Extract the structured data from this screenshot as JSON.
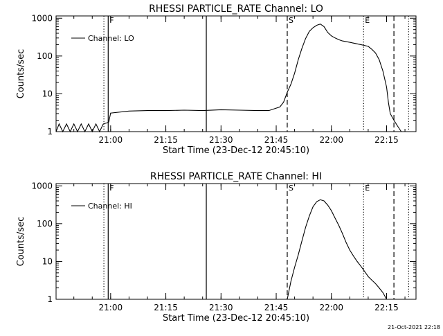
{
  "footer": {
    "timestamp": "21-Oct-2021 22:18"
  },
  "chart_data": [
    {
      "type": "line",
      "title": "RHESSI PARTICLE_RATE Channel: LO",
      "xlabel": "Start Time (23-Dec-12 20:45:10)",
      "ylabel": "Counts/sec",
      "yscale": "log",
      "ylim": [
        1,
        1000
      ],
      "xlim": [
        "20:45:10",
        "22:23:00"
      ],
      "x_ticks": [
        "21:00",
        "21:15",
        "21:30",
        "21:45",
        "22:00",
        "22:15"
      ],
      "y_ticks": [
        "1",
        "10",
        "100",
        "1000"
      ],
      "legend": {
        "entries": [
          "Channel: LO"
        ],
        "placement": "top-left"
      },
      "grid": false,
      "markers": [
        {
          "label": "F",
          "time": "20:59:20",
          "style": "solid"
        },
        {
          "label": "",
          "time": "20:58:10",
          "style": "dotted"
        },
        {
          "label": "",
          "time": "21:26:00",
          "style": "solid"
        },
        {
          "label": "S",
          "time": "21:48:00",
          "style": "dashed"
        },
        {
          "label": "E",
          "time": "22:08:45",
          "style": "dotted"
        },
        {
          "label": "",
          "time": "22:17:00",
          "style": "dashed"
        },
        {
          "label": "",
          "time": "22:21:00",
          "style": "dotted"
        }
      ],
      "series": [
        {
          "name": "Channel: LO",
          "x": [
            "20:45:10",
            "20:46:00",
            "20:47:00",
            "20:48:00",
            "20:49:00",
            "20:50:00",
            "20:51:00",
            "20:52:00",
            "20:53:00",
            "20:54:00",
            "20:55:00",
            "20:56:00",
            "20:57:00",
            "20:58:00",
            "20:59:00",
            "20:59:30",
            "21:00:00",
            "21:05:00",
            "21:10:00",
            "21:15:00",
            "21:20:00",
            "21:25:00",
            "21:30:00",
            "21:35:00",
            "21:40:00",
            "21:43:00",
            "21:46:00",
            "21:47:00",
            "21:48:00",
            "21:49:00",
            "21:50:00",
            "21:51:00",
            "21:52:00",
            "21:53:00",
            "21:54:00",
            "21:55:00",
            "21:56:00",
            "21:57:00",
            "21:58:00",
            "21:59:00",
            "22:00:00",
            "22:01:00",
            "22:02:00",
            "22:03:00",
            "22:04:00",
            "22:05:00",
            "22:06:00",
            "22:07:00",
            "22:08:00",
            "22:09:00",
            "22:10:00",
            "22:11:00",
            "22:12:00",
            "22:13:00",
            "22:14:00",
            "22:15:00",
            "22:15:30",
            "22:16:00",
            "22:17:00",
            "22:18:00",
            "22:19:00"
          ],
          "values": [
            1,
            1.6,
            1,
            1.6,
            1,
            1.6,
            1,
            1.6,
            1,
            1.6,
            1,
            1.6,
            1,
            1.6,
            1.7,
            1.8,
            3.1,
            3.5,
            3.6,
            3.6,
            3.7,
            3.6,
            3.8,
            3.7,
            3.6,
            3.6,
            4.5,
            6,
            11,
            18,
            35,
            80,
            160,
            290,
            450,
            560,
            650,
            700,
            600,
            420,
            340,
            300,
            270,
            250,
            240,
            230,
            220,
            210,
            200,
            190,
            180,
            150,
            120,
            80,
            40,
            15,
            6,
            3,
            2,
            1.4,
            1
          ]
        }
      ]
    },
    {
      "type": "line",
      "title": "RHESSI PARTICLE_RATE Channel: HI",
      "xlabel": "Start Time (23-Dec-12 20:45:10)",
      "ylabel": "Counts/sec",
      "yscale": "log",
      "ylim": [
        1,
        1000
      ],
      "xlim": [
        "20:45:10",
        "22:23:00"
      ],
      "x_ticks": [
        "21:00",
        "21:15",
        "21:30",
        "21:45",
        "22:00",
        "22:15"
      ],
      "y_ticks": [
        "1",
        "10",
        "100",
        "1000"
      ],
      "legend": {
        "entries": [
          "Channel: HI"
        ],
        "placement": "top-left"
      },
      "grid": false,
      "markers": [
        {
          "label": "F",
          "time": "20:59:20",
          "style": "solid"
        },
        {
          "label": "",
          "time": "20:58:10",
          "style": "dotted"
        },
        {
          "label": "",
          "time": "21:26:00",
          "style": "solid"
        },
        {
          "label": "S",
          "time": "21:48:00",
          "style": "dashed"
        },
        {
          "label": "E",
          "time": "22:08:45",
          "style": "dotted"
        },
        {
          "label": "",
          "time": "22:17:00",
          "style": "dashed"
        },
        {
          "label": "",
          "time": "22:21:00",
          "style": "dotted"
        }
      ],
      "series": [
        {
          "name": "Channel: HI",
          "x": [
            "21:48:00",
            "21:49:00",
            "21:50:00",
            "21:51:00",
            "21:52:00",
            "21:53:00",
            "21:54:00",
            "21:55:00",
            "21:56:00",
            "21:57:00",
            "21:58:00",
            "21:59:00",
            "22:00:00",
            "22:01:00",
            "22:02:00",
            "22:03:00",
            "22:04:00",
            "22:05:00",
            "22:06:00",
            "22:07:00",
            "22:08:00",
            "22:09:00",
            "22:10:00",
            "22:11:00",
            "22:12:00",
            "22:13:00",
            "22:14:00",
            "22:15:00"
          ],
          "values": [
            1,
            3,
            7,
            15,
            35,
            80,
            160,
            280,
            380,
            430,
            400,
            310,
            220,
            140,
            90,
            55,
            32,
            20,
            14,
            10,
            7.5,
            5.5,
            4,
            3.2,
            2.6,
            2,
            1.5,
            1
          ]
        }
      ]
    }
  ]
}
